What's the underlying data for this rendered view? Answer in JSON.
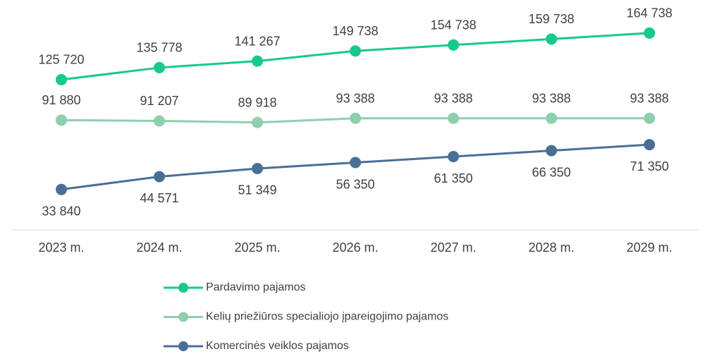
{
  "chart_data": {
    "type": "line",
    "categories": [
      "2023 m.",
      "2024 m.",
      "2025 m.",
      "2026 m.",
      "2027 m.",
      "2028 m.",
      "2029 m."
    ],
    "ylim": [
      0,
      180000
    ],
    "series": [
      {
        "name": "Pardavimo pajamos",
        "color": "#17c98f",
        "values": [
          125720,
          135778,
          141267,
          149738,
          154738,
          159738,
          164738
        ],
        "value_labels": [
          "125 720",
          "135 778",
          "141 267",
          "149 738",
          "154 738",
          "159 738",
          "164 738"
        ]
      },
      {
        "name": "Kelių priežiūros specialiojo įpareigojimo pajamos",
        "color": "#8ecfae",
        "values": [
          91880,
          91207,
          89918,
          93388,
          93388,
          93388,
          93388
        ],
        "value_labels": [
          "91 880",
          "91 207",
          "89 918",
          "93 388",
          "93 388",
          "93 388",
          "93 388"
        ]
      },
      {
        "name": "Komercinės veiklos pajamos",
        "color": "#4a6f96",
        "values": [
          33840,
          44571,
          51349,
          56350,
          61350,
          66350,
          71350
        ],
        "value_labels": [
          "33 840",
          "44 571",
          "51 349",
          "56 350",
          "61 350",
          "66 350",
          "71 350"
        ]
      }
    ],
    "legend": "bottom"
  }
}
